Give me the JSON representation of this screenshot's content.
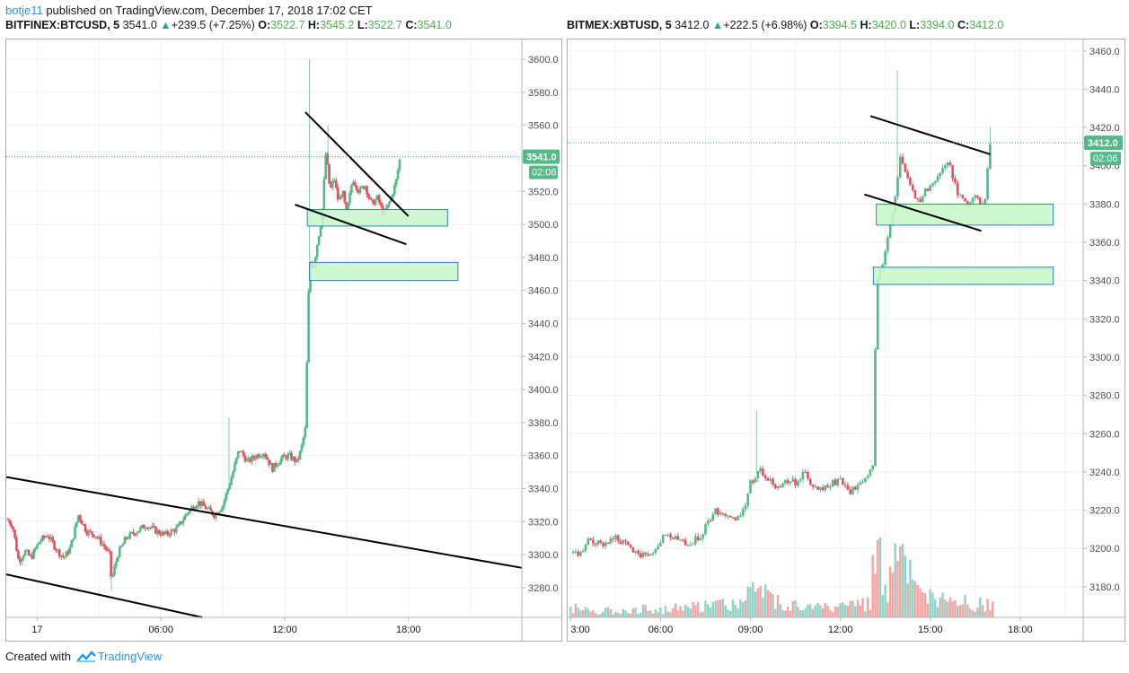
{
  "header": {
    "author": "botje11",
    "published_text": "published on TradingView.com, December 17, 2018 17:02 CET"
  },
  "footer": {
    "created_with": "Created with",
    "brand": "TradingView"
  },
  "colors": {
    "up": "#53b987",
    "down": "#eb4d5c",
    "zone_fill": "#c8f7c5",
    "zone_border": "#2f7fcf",
    "price_line": "#26a69a",
    "trend_line": "#000000",
    "volume_up": "#8fd3c6",
    "volume_down": "#f5a3a3"
  },
  "charts": [
    {
      "legend": {
        "symbol": "BITFINEX:BTCUSD, 5",
        "last": "3541.0",
        "change": "+239.5 (+7.25%)",
        "o_label": "O:",
        "o": "3522.7",
        "h_label": "H:",
        "h": "3545.2",
        "l_label": "L:",
        "l": "3522.7",
        "c_label": "C:",
        "c": "3541.0"
      },
      "price_badge": "3541.0",
      "countdown": "02:06"
    },
    {
      "legend": {
        "symbol": "BITMEX:XBTUSD, 5",
        "last": "3412.0",
        "change": "+222.5 (+6.98%)",
        "o_label": "O:",
        "o": "3394.5",
        "h_label": "H:",
        "h": "3420.0",
        "l_label": "L:",
        "l": "3394.0",
        "c_label": "C:",
        "c": "3412.0"
      },
      "price_badge": "3412.0",
      "countdown": "02:06"
    }
  ],
  "chart_data": [
    {
      "type": "candlestick",
      "symbol": "BITFINEX:BTCUSD",
      "interval": "5",
      "y_ticks": [
        "3280.0",
        "3300.0",
        "3320.0",
        "3340.0",
        "3360.0",
        "3380.0",
        "3400.0",
        "3420.0",
        "3440.0",
        "3460.0",
        "3480.0",
        "3500.0",
        "3520.0",
        "3540.0",
        "3560.0",
        "3580.0",
        "3600.0"
      ],
      "ylim": [
        3262,
        3612
      ],
      "x_ticks": [
        "17",
        "06:00",
        "12:00",
        "18:00"
      ],
      "x_tick_hours": [
        0,
        6,
        12,
        18
      ],
      "xlim_hours": [
        -1.5,
        23.5
      ],
      "grid": true,
      "last_price": 3541.0,
      "price_path": [
        [
          -1.5,
          3322
        ],
        [
          -1.2,
          3318
        ],
        [
          -0.9,
          3296
        ],
        [
          -0.6,
          3302
        ],
        [
          -0.3,
          3298
        ],
        [
          0.1,
          3308
        ],
        [
          0.5,
          3312
        ],
        [
          1.0,
          3302
        ],
        [
          1.3,
          3298
        ],
        [
          1.6,
          3304
        ],
        [
          2.0,
          3324
        ],
        [
          2.4,
          3314
        ],
        [
          2.8,
          3312
        ],
        [
          3.2,
          3306
        ],
        [
          3.5,
          3300
        ],
        [
          3.6,
          3284
        ],
        [
          3.9,
          3300
        ],
        [
          4.3,
          3310
        ],
        [
          4.8,
          3314
        ],
        [
          5.3,
          3318
        ],
        [
          5.8,
          3314
        ],
        [
          6.2,
          3312
        ],
        [
          6.8,
          3316
        ],
        [
          7.3,
          3326
        ],
        [
          7.8,
          3332
        ],
        [
          8.2,
          3328
        ],
        [
          8.6,
          3324
        ],
        [
          9.0,
          3330
        ],
        [
          9.4,
          3346
        ],
        [
          9.8,
          3364
        ],
        [
          10.2,
          3356
        ],
        [
          10.6,
          3360
        ],
        [
          11.0,
          3362
        ],
        [
          11.4,
          3352
        ],
        [
          11.8,
          3358
        ],
        [
          12.2,
          3360
        ],
        [
          12.6,
          3356
        ],
        [
          12.8,
          3364
        ],
        [
          13.0,
          3376
        ],
        [
          13.2,
          3478
        ],
        [
          13.4,
          3474
        ],
        [
          13.6,
          3490
        ],
        [
          13.8,
          3504
        ],
        [
          14.0,
          3544
        ],
        [
          14.2,
          3520
        ],
        [
          14.4,
          3528
        ],
        [
          14.6,
          3514
        ],
        [
          14.8,
          3520
        ],
        [
          15.0,
          3506
        ],
        [
          15.3,
          3528
        ],
        [
          15.6,
          3520
        ],
        [
          15.9,
          3524
        ],
        [
          16.2,
          3512
        ],
        [
          16.5,
          3516
        ],
        [
          16.8,
          3506
        ],
        [
          17.1,
          3514
        ],
        [
          17.4,
          3526
        ],
        [
          17.6,
          3541
        ]
      ],
      "spikes": [
        [
          13.2,
          3600
        ],
        [
          14.1,
          3560
        ],
        [
          9.3,
          3383
        ],
        [
          3.6,
          3278
        ]
      ],
      "zones": [
        {
          "x0": 13.1,
          "x1": 19.9,
          "y0": 3499,
          "y1": 3509
        },
        {
          "x0": 13.2,
          "x1": 20.4,
          "y0": 3466,
          "y1": 3477
        }
      ],
      "trend_lines": [
        [
          [
            -1.5,
            3347
          ],
          [
            23.5,
            3292
          ]
        ],
        [
          [
            -1.5,
            3288
          ],
          [
            8.0,
            3262
          ]
        ],
        [
          [
            13.0,
            3568
          ],
          [
            18.0,
            3505
          ]
        ],
        [
          [
            12.5,
            3512
          ],
          [
            17.9,
            3488
          ]
        ]
      ]
    },
    {
      "type": "candlestick",
      "symbol": "BITMEX:XBTUSD",
      "interval": "5",
      "y_ticks": [
        "3180.0",
        "3200.0",
        "3220.0",
        "3240.0",
        "3260.0",
        "3280.0",
        "3300.0",
        "3320.0",
        "3340.0",
        "3360.0",
        "3380.0",
        "3400.0",
        "3420.0",
        "3440.0",
        "3460.0"
      ],
      "ylim": [
        3164,
        3466
      ],
      "x_ticks": [
        "3:00",
        "06:00",
        "09:00",
        "12:00",
        "15:00",
        "18:00"
      ],
      "x_tick_hours": [
        3,
        6,
        9,
        12,
        15,
        18
      ],
      "xlim_hours": [
        2.9,
        20.1
      ],
      "grid": true,
      "last_price": 3412.0,
      "price_path": [
        [
          3.0,
          3198
        ],
        [
          3.3,
          3196
        ],
        [
          3.6,
          3204
        ],
        [
          4.0,
          3202
        ],
        [
          4.5,
          3206
        ],
        [
          5.0,
          3200
        ],
        [
          5.4,
          3196
        ],
        [
          5.8,
          3200
        ],
        [
          6.2,
          3208
        ],
        [
          6.6,
          3204
        ],
        [
          7.0,
          3202
        ],
        [
          7.4,
          3208
        ],
        [
          7.8,
          3220
        ],
        [
          8.2,
          3218
        ],
        [
          8.5,
          3214
        ],
        [
          8.8,
          3222
        ],
        [
          9.0,
          3234
        ],
        [
          9.3,
          3242
        ],
        [
          9.6,
          3236
        ],
        [
          9.9,
          3232
        ],
        [
          10.2,
          3236
        ],
        [
          10.5,
          3234
        ],
        [
          10.8,
          3240
        ],
        [
          11.1,
          3232
        ],
        [
          11.4,
          3230
        ],
        [
          11.7,
          3234
        ],
        [
          12.0,
          3236
        ],
        [
          12.3,
          3230
        ],
        [
          12.6,
          3232
        ],
        [
          12.9,
          3236
        ],
        [
          13.1,
          3244
        ],
        [
          13.2,
          3342
        ],
        [
          13.4,
          3346
        ],
        [
          13.6,
          3366
        ],
        [
          13.8,
          3380
        ],
        [
          14.0,
          3404
        ],
        [
          14.2,
          3396
        ],
        [
          14.4,
          3388
        ],
        [
          14.6,
          3380
        ],
        [
          14.8,
          3386
        ],
        [
          15.0,
          3390
        ],
        [
          15.3,
          3396
        ],
        [
          15.6,
          3402
        ],
        [
          15.9,
          3386
        ],
        [
          16.2,
          3380
        ],
        [
          16.5,
          3384
        ],
        [
          16.8,
          3378
        ],
        [
          17.0,
          3412
        ]
      ],
      "spikes": [
        [
          13.9,
          3450
        ],
        [
          17.0,
          3420
        ],
        [
          9.2,
          3272
        ]
      ],
      "zones": [
        {
          "x0": 13.2,
          "x1": 19.1,
          "y0": 3369,
          "y1": 3380
        },
        {
          "x0": 13.1,
          "x1": 19.1,
          "y0": 3338,
          "y1": 3347
        }
      ],
      "trend_lines": [
        [
          [
            13.0,
            3426
          ],
          [
            17.0,
            3406
          ]
        ],
        [
          [
            12.8,
            3385
          ],
          [
            16.7,
            3366
          ]
        ]
      ],
      "volume_profile": [
        [
          3.0,
          0.12
        ],
        [
          4.0,
          0.08
        ],
        [
          5.0,
          0.1
        ],
        [
          6.0,
          0.1
        ],
        [
          7.0,
          0.12
        ],
        [
          8.0,
          0.2
        ],
        [
          8.5,
          0.14
        ],
        [
          9.0,
          0.4
        ],
        [
          10.0,
          0.18
        ],
        [
          11.0,
          0.12
        ],
        [
          12.0,
          0.12
        ],
        [
          13.0,
          0.2
        ],
        [
          13.2,
          1.0
        ],
        [
          13.5,
          0.35
        ],
        [
          14.0,
          0.75
        ],
        [
          14.5,
          0.3
        ],
        [
          15.0,
          0.22
        ],
        [
          16.0,
          0.18
        ],
        [
          17.0,
          0.14
        ]
      ]
    }
  ]
}
